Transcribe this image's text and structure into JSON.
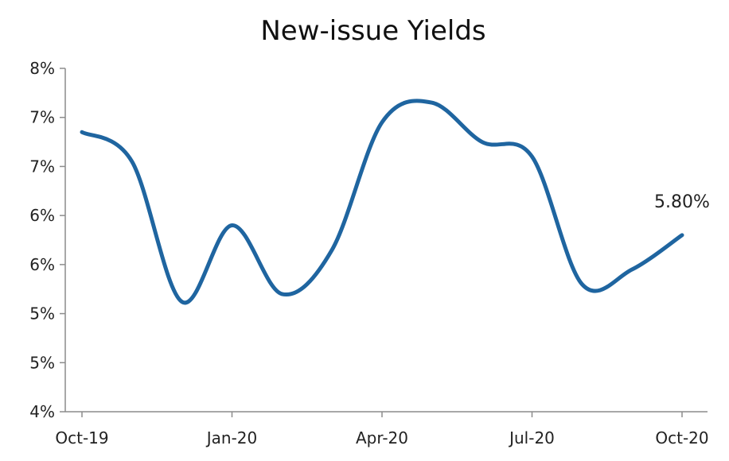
{
  "chart_data": {
    "type": "line",
    "title": "New-issue Yields",
    "xlabel": "",
    "ylabel": "",
    "x_tick_labels": [
      "Oct-19",
      "Jan-20",
      "Apr-20",
      "Jul-20",
      "Oct-20"
    ],
    "y_tick_labels": [
      "4%",
      "5%",
      "5%",
      "6%",
      "6%",
      "7%",
      "7%",
      "8%"
    ],
    "ylim": [
      4.0,
      7.5
    ],
    "grid": false,
    "series": [
      {
        "color": "#1f65a0",
        "x": [
          "2019-10",
          "2019-11",
          "2019-12",
          "2020-01",
          "2020-02",
          "2020-03",
          "2020-04",
          "2020-05",
          "2020-06",
          "2020-07",
          "2020-08",
          "2020-09",
          "2020-10"
        ],
        "values": [
          6.85,
          6.55,
          5.12,
          5.9,
          5.2,
          5.65,
          6.95,
          7.15,
          6.75,
          6.6,
          5.3,
          5.45,
          5.8
        ]
      }
    ],
    "annotations": [
      {
        "text": "5.80%",
        "x": "2020-10",
        "y": 5.8
      }
    ]
  }
}
